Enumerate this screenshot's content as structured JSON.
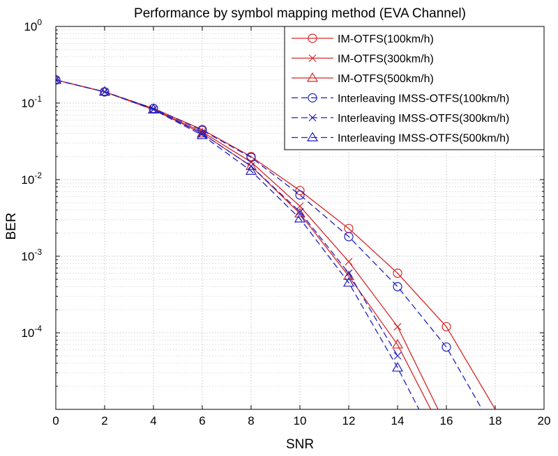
{
  "chart_data": {
    "type": "line",
    "title": "Performance by symbol mapping method (EVA Channel)",
    "xlabel": "SNR",
    "ylabel": "BER",
    "xlim": [
      0,
      20
    ],
    "ylim": [
      1e-05,
      1
    ],
    "yscale": "log",
    "grid": true,
    "minor_grid": true,
    "legend_position": "top-right",
    "x_ticks": [
      "0",
      "2",
      "4",
      "6",
      "8",
      "10",
      "12",
      "14",
      "16",
      "18",
      "20"
    ],
    "y_ticks": [
      {
        "base": "10",
        "exp": "0"
      },
      {
        "base": "10",
        "exp": "-1"
      },
      {
        "base": "10",
        "exp": "-2"
      },
      {
        "base": "10",
        "exp": "-3"
      },
      {
        "base": "10",
        "exp": "-4"
      }
    ],
    "series": [
      {
        "name": "IM-OTFS(100km/h)",
        "color": "#d62728",
        "dash": "solid",
        "marker": "circle",
        "x": [
          0,
          2,
          4,
          6,
          8,
          10,
          12,
          14,
          16,
          18
        ],
        "y": [
          0.2,
          0.14,
          0.085,
          0.045,
          0.02,
          0.0072,
          0.0023,
          0.0006,
          0.00012,
          1e-05
        ]
      },
      {
        "name": "IM-OTFS(300km/h)",
        "color": "#d62728",
        "dash": "solid",
        "marker": "x",
        "x": [
          0,
          2,
          4,
          6,
          8,
          10,
          12,
          14,
          16
        ],
        "y": [
          0.2,
          0.14,
          0.083,
          0.042,
          0.017,
          0.0045,
          0.00085,
          0.00012,
          6e-06
        ]
      },
      {
        "name": "IM-OTFS(500km/h)",
        "color": "#d62728",
        "dash": "solid",
        "marker": "triangle",
        "x": [
          0,
          2,
          4,
          6,
          8,
          10,
          12,
          14,
          16
        ],
        "y": [
          0.2,
          0.14,
          0.082,
          0.04,
          0.015,
          0.0036,
          0.00055,
          7e-05,
          4e-06
        ]
      },
      {
        "name": "Interleaving IMSS-OTFS(100km/h)",
        "color": "#1f1fbf",
        "dash": "dashed",
        "marker": "circle",
        "x": [
          0,
          2,
          4,
          6,
          8,
          10,
          12,
          14,
          16,
          18
        ],
        "y": [
          0.2,
          0.14,
          0.085,
          0.044,
          0.0195,
          0.0063,
          0.0018,
          0.0004,
          6.5e-05,
          5e-06
        ]
      },
      {
        "name": "Interleaving IMSS-OTFS(300km/h)",
        "color": "#1f1fbf",
        "dash": "dashed",
        "marker": "x",
        "x": [
          0,
          2,
          4,
          6,
          8,
          10,
          12,
          14
        ],
        "y": [
          0.2,
          0.14,
          0.083,
          0.04,
          0.015,
          0.0038,
          0.0006,
          5e-05
        ]
      },
      {
        "name": "Interleaving IMSS-OTFS(500km/h)",
        "color": "#1f1fbf",
        "dash": "dashed",
        "marker": "triangle",
        "x": [
          0,
          2,
          4,
          6,
          8,
          10,
          12,
          14,
          16
        ],
        "y": [
          0.2,
          0.14,
          0.082,
          0.038,
          0.013,
          0.0031,
          0.00045,
          3.5e-05,
          2e-06
        ]
      }
    ]
  }
}
